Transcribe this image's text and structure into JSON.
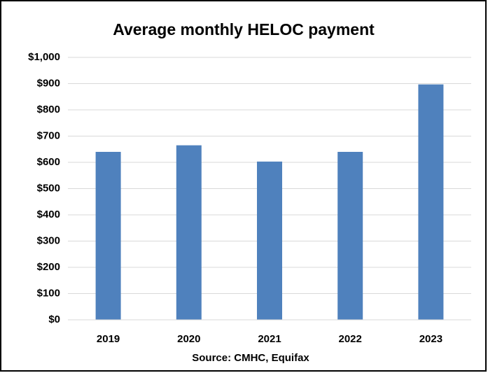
{
  "chart_data": {
    "type": "bar",
    "title": "Average monthly HELOC payment",
    "categories": [
      "2019",
      "2020",
      "2021",
      "2022",
      "2023"
    ],
    "values": [
      640,
      665,
      603,
      640,
      897
    ],
    "color": "#4f81bd",
    "ylim": [
      0,
      1000
    ],
    "yticks": [
      {
        "value": 0,
        "label": "$0"
      },
      {
        "value": 100,
        "label": "$100"
      },
      {
        "value": 200,
        "label": "$200"
      },
      {
        "value": 300,
        "label": "$300"
      },
      {
        "value": 400,
        "label": "$400"
      },
      {
        "value": 500,
        "label": "$500"
      },
      {
        "value": 600,
        "label": "$600"
      },
      {
        "value": 700,
        "label": "$700"
      },
      {
        "value": 800,
        "label": "$800"
      },
      {
        "value": 900,
        "label": "$900"
      },
      {
        "value": 1000,
        "label": "$1,000"
      }
    ],
    "grid": true,
    "source": "Source:  CMHC, Equifax"
  }
}
